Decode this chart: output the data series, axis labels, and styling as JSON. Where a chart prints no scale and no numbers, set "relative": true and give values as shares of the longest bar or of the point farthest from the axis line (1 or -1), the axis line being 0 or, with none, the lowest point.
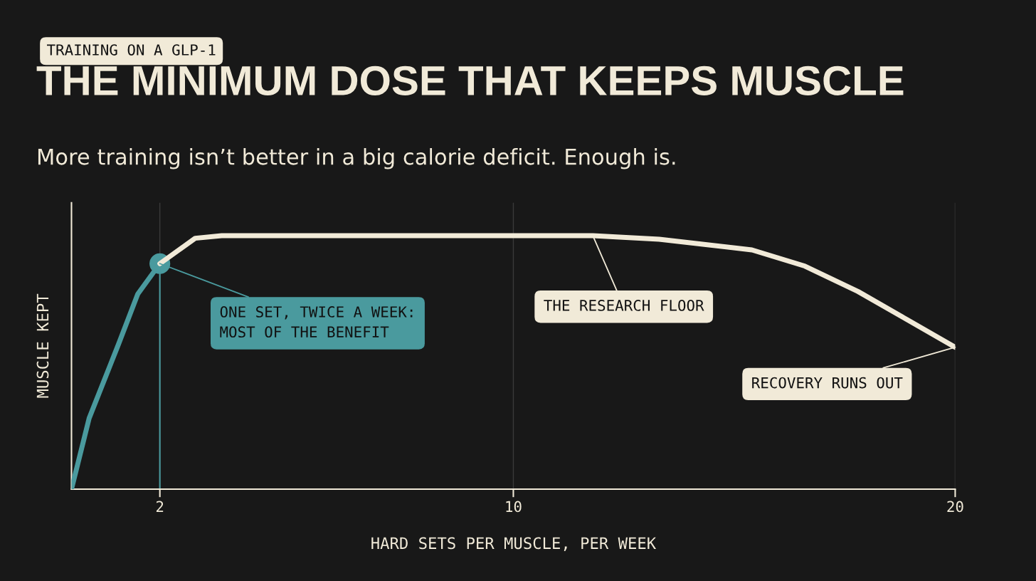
{
  "chart_data": {
    "type": "line",
    "title": "THE MINIMUM DOSE THAT KEEPS MUSCLE",
    "subtitle": "More training isn’t better in a big calorie deficit. Enough is.",
    "xlabel": "HARD SETS PER MUSCLE, PER WEEK",
    "ylabel": "MUSCLE KEPT",
    "relative": true,
    "xlim": [
      0,
      20
    ],
    "xticks": [
      2,
      10,
      20
    ],
    "grid": "x",
    "legend": false,
    "series": [
      {
        "color": "#4a9a9e",
        "x": [
          0,
          0.4,
          1.06,
          1.5,
          2
        ],
        "values": [
          0,
          0.28,
          0.57,
          0.77,
          0.89
        ]
      },
      {
        "color": "#f1ead8",
        "x": [
          2,
          2.8,
          3.4,
          6,
          10,
          11.8,
          13.3,
          15.4,
          16.6,
          17.8,
          18.9,
          20
        ],
        "values": [
          0.89,
          0.99,
          1,
          1,
          1,
          1,
          0.986,
          0.944,
          0.88,
          0.78,
          0.67,
          0.56
        ]
      },
      {
        "type": "scatter",
        "color": "#4a9a9e",
        "x": [
          2
        ],
        "values": [
          0.89
        ],
        "marker": "circle"
      }
    ],
    "ref_lines": [
      {
        "axis": "x",
        "value": 2,
        "color": "#4a9a9e"
      }
    ],
    "annotations": [
      "TRAINING ON A GLP-1",
      {
        "text": "ONE SET, TWICE A WEEK:\nMOST OF THE BENEFIT",
        "x": 2,
        "y": 0.89
      },
      {
        "text": "THE RESEARCH FLOOR",
        "x": 11.8,
        "y": 1
      },
      {
        "text": "RECOVERY RUNS OUT",
        "x": 20,
        "y": 0.56
      }
    ]
  }
}
